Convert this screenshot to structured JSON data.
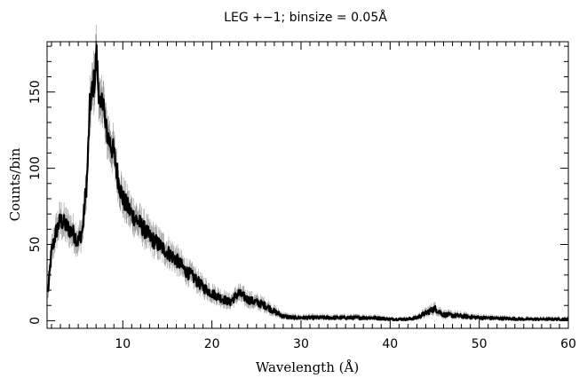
{
  "chart_data": {
    "type": "line",
    "title": "LEG +−1; binsize = 0.05Å",
    "xlabel": "Wavelength (Å)",
    "ylabel": "Counts/bin",
    "xlim": [
      1.5,
      60
    ],
    "ylim": [
      -5,
      183
    ],
    "x_ticks": [
      10,
      20,
      30,
      40,
      50,
      60
    ],
    "y_ticks": [
      0,
      50,
      100,
      150
    ],
    "grid": false,
    "legend": "none",
    "colors": {
      "line": "#000000",
      "error_bars": "#9a9a9a"
    },
    "series": [
      {
        "x": [
          1.6,
          2.0,
          2.5,
          3.0,
          3.5,
          4.0,
          4.5,
          5.0,
          5.5,
          6.0,
          6.3,
          6.6,
          6.9,
          7.0,
          7.2,
          7.5,
          7.8,
          8.0,
          8.5,
          9.0,
          9.5,
          10,
          11,
          12,
          13,
          14,
          15,
          16,
          17,
          18,
          19,
          20,
          21,
          22,
          23,
          24,
          25,
          26,
          27,
          28,
          29,
          30,
          32,
          35,
          38,
          40,
          42,
          43,
          44,
          45,
          46,
          48,
          50,
          55,
          60
        ],
        "y": [
          18,
          45,
          58,
          66,
          63,
          60,
          57,
          52,
          60,
          95,
          140,
          152,
          160,
          178,
          160,
          135,
          150,
          128,
          118,
          110,
          92,
          80,
          70,
          63,
          55,
          50,
          45,
          40,
          33,
          28,
          22,
          18,
          15,
          12,
          18,
          14,
          12,
          10,
          6,
          3,
          2,
          2,
          2,
          2,
          2,
          1,
          1,
          2,
          5,
          8,
          4,
          3,
          2,
          1,
          1
        ]
      }
    ]
  }
}
